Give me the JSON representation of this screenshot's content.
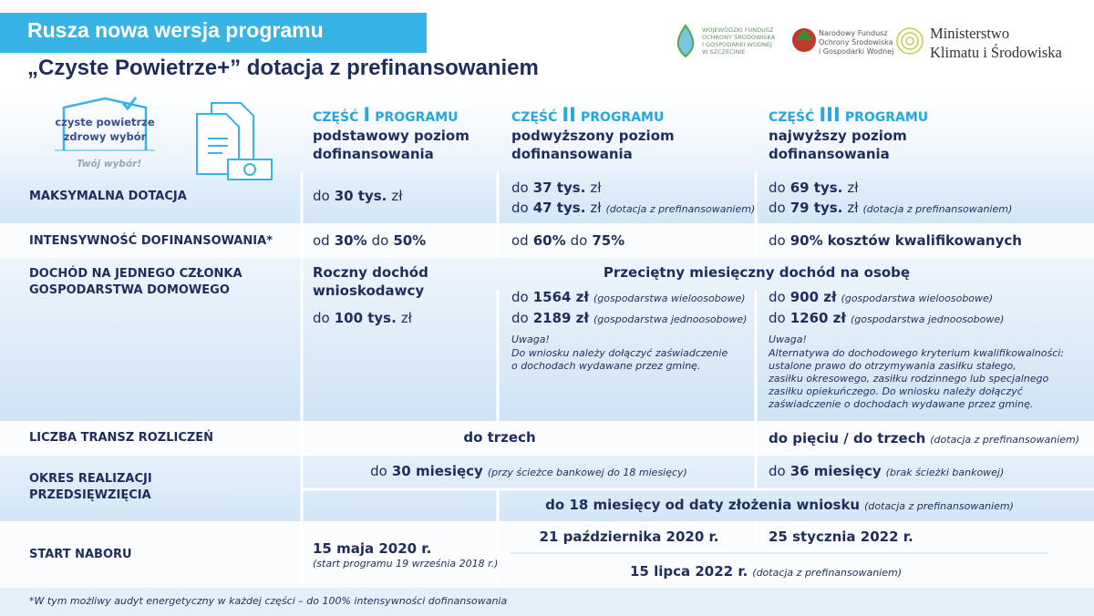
{
  "header": {
    "title_line1": "Rusza nowa wersja programu",
    "title_line2": "„Czyste Powietrze+” dotacja z prefinansowaniem"
  },
  "logos": {
    "wfos": [
      "WOJEWÓDZKI FUNDUSZ",
      "OCHRONY ŚRODOWISKA",
      "I GOSPODARKI WODNEJ",
      "W SZCZECINIE"
    ],
    "nfos": [
      "Narodowy Fundusz",
      "Ochrony Środowiska",
      "i Gospodarki Wodnej"
    ],
    "ministry": [
      "Ministerstwo",
      "Klimatu i Środowiska"
    ]
  },
  "badge": {
    "lines": [
      "czyste powietrze",
      "zdrowy wybór"
    ],
    "tagline": "Twój wybór!"
  },
  "parts": [
    {
      "heading": [
        "CZĘŚĆ",
        "I",
        "PROGRAMU"
      ],
      "level": [
        "podstawowy poziom",
        "dofinansowania"
      ]
    },
    {
      "heading": [
        "CZĘŚĆ",
        "II",
        "PROGRAMU"
      ],
      "level": [
        "podwyższony poziom",
        "dofinansowania"
      ]
    },
    {
      "heading": [
        "CZĘŚĆ",
        "III",
        "PROGRAMU"
      ],
      "level": [
        "najwyższy poziom",
        "dofinansowania"
      ]
    }
  ],
  "rows": {
    "max_grant": {
      "label": "MAKSYMALNA DOTACJA",
      "part1": [
        [
          "do",
          "30 tys.",
          "zł"
        ]
      ],
      "part2": [
        [
          "do",
          "37 tys.",
          "zł"
        ],
        [
          "do",
          "47 tys.",
          "zł",
          "(dotacja z prefinansowaniem)"
        ]
      ],
      "part3": [
        [
          "do",
          "69 tys.",
          "zł"
        ],
        [
          "do",
          "79 tys.",
          "zł",
          "(dotacja z prefinansowaniem)"
        ]
      ]
    },
    "intensity": {
      "label": "INTENSYWNOŚĆ DOFINANSOWANIA*",
      "part1": [
        "od",
        "30%",
        "do",
        "50%"
      ],
      "part2": [
        "od",
        "60%",
        "do",
        "75%"
      ],
      "part3": [
        "do",
        "90%",
        "kosztów kwalifikowanych"
      ]
    },
    "income": {
      "label": [
        "DOCHÓD NA JEDNEGO CZŁONKA",
        "GOSPODARSTWA DOMOWEGO"
      ],
      "part1": {
        "heading": [
          "Roczny dochód",
          "wnioskodawcy"
        ],
        "limit": [
          "do",
          "100 tys.",
          "zł"
        ]
      },
      "part23_heading": "Przeciętny miesięczny dochód na osobę",
      "part2": {
        "limits": [
          [
            "do",
            "1564 zł",
            "(gospodarstwa wieloosobowe)"
          ],
          [
            "do",
            "2189 zł",
            "(gospodarstwa jednoosobowe)"
          ]
        ],
        "note_title": "Uwaga!",
        "note": [
          "Do wniosku należy dołączyć zaświadczenie",
          "o dochodach wydawane przez gminę."
        ]
      },
      "part3": {
        "limits": [
          [
            "do",
            "900 zł",
            "(gospodarstwa wieloosobowe)"
          ],
          [
            "do",
            "1260 zł",
            "(gospodarstwa jednoosobowe)"
          ]
        ],
        "note_title": "Uwaga!",
        "note": [
          "Alternatywa do dochodowego kryterium kwalifikowalności:",
          "ustalone prawo do otrzymywania zasiłku stałego,",
          "zasiłku okresowego, zasiłku rodzinnego lub specjalnego",
          "zasiłku opiekuńczego. Do wniosku należy dołączyć",
          "zaświadczenie o dochodach wydawane przez gminę."
        ]
      }
    },
    "tranches": {
      "label": "LICZBA TRANSZ ROZLICZEŃ",
      "part12": "do trzech",
      "part3": [
        "do pięciu / do trzech",
        "(dotacja z prefinansowaniem)"
      ]
    },
    "period": {
      "label": [
        "OKRES REALIZACJI",
        "PRZEDSIĘWZIĘCIA"
      ],
      "part12": [
        "do",
        "30 miesięcy",
        "(przy ścieżce bankowej do 18 miesięcy)"
      ],
      "part3": [
        "do",
        "36 miesięcy",
        "(brak ścieżki bankowej)"
      ],
      "prefinancing": [
        "do 18 miesięcy od daty złożenia wniosku",
        "(dotacja z prefinansowaniem)"
      ]
    },
    "start": {
      "label": "START NABORU",
      "part1": [
        "15 maja 2020 r.",
        "(start programu 19 września 2018 r.)"
      ],
      "part2": "21 października 2020 r.",
      "part3": "25 stycznia 2022 r.",
      "prefinancing": [
        "15 lipca 2022 r.",
        "(dotacja z prefinansowaniem)"
      ]
    }
  },
  "footnote": "*W tym możliwy audyt energetyczny w każdej części – do 100% intensywności dofinansowania"
}
